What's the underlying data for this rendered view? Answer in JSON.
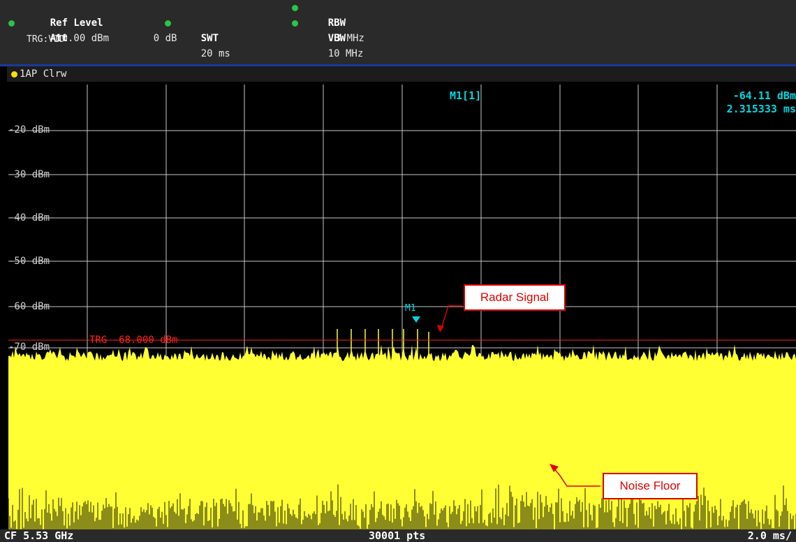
{
  "header": {
    "ref_level_label": "Ref Level",
    "ref_level_value": "-10.00 dBm",
    "att_label": "Att",
    "att_value": "0 dB",
    "swt_label": "SWT",
    "swt_value": "20 ms",
    "rbw_label": "RBW",
    "rbw_value": "3 MHz",
    "vbw_label": "VBW",
    "vbw_value": "10 MHz",
    "trigger": "TRG:VID"
  },
  "trace_tab": {
    "label": "1AP Clrw"
  },
  "marker": {
    "name": "M1[1]",
    "level": "-64.11 dBm",
    "time": "2.315333 ms",
    "tag": "M1"
  },
  "y_axis_labels": [
    "-20 dBm",
    "-30 dBm",
    "-40 dBm",
    "-50 dBm",
    "-60 dBm",
    "-70 dBm"
  ],
  "trigger_line": {
    "label": "TRG -68.000 dBm",
    "color": "#ff2020"
  },
  "annotations": {
    "radar": "Radar Signal",
    "noise": "Noise Floor"
  },
  "footer": {
    "cf": "CF 5.53 GHz",
    "points": "30001 pts",
    "scale": "2.0 ms/"
  },
  "colors": {
    "trace": "#ffff33",
    "marker": "#00d8e0",
    "grid": "#c8c8c8"
  }
}
